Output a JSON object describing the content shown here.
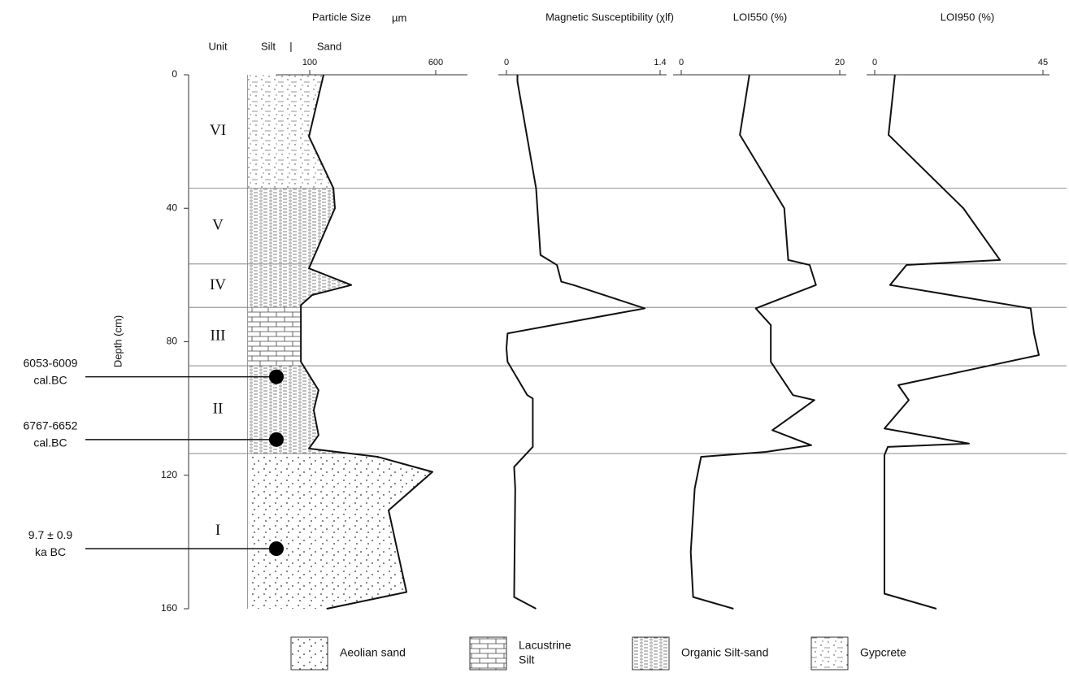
{
  "depth_axis": {
    "label": "Depth (cm)",
    "ylim": [
      0,
      160
    ],
    "yticks": [
      0,
      40,
      80,
      120,
      160
    ]
  },
  "unit_header": "Unit",
  "silt_label": "Silt",
  "divider_label": "|",
  "sand_label": "Sand",
  "boundaries": [
    34,
    56.7,
    69.7,
    87.2,
    113.5
  ],
  "units": [
    {
      "name": "VI",
      "pattern": "gyp"
    },
    {
      "name": "V",
      "pattern": "org"
    },
    {
      "name": "IV",
      "pattern": "org"
    },
    {
      "name": "III",
      "pattern": "lac"
    },
    {
      "name": "II",
      "pattern": "org"
    },
    {
      "name": "I",
      "pattern": "aeo"
    }
  ],
  "samples": [
    {
      "lines": [
        "6053-6009",
        "cal.BC"
      ],
      "depth": 90.5
    },
    {
      "lines": [
        "6767-6652",
        "cal.BC"
      ],
      "depth": 109.3
    },
    {
      "lines": [
        "9.7 ± 0.9",
        "ka BC"
      ],
      "depth": 142
    }
  ],
  "legend": [
    {
      "lines": [
        "Aeolian sand"
      ],
      "pattern": "aeo"
    },
    {
      "lines": [
        "Lacustrine",
        "Silt"
      ],
      "pattern": "lac"
    },
    {
      "lines": [
        "Organic Silt-sand"
      ],
      "pattern": "org"
    },
    {
      "lines": [
        "Gypcrete"
      ],
      "pattern": "gyp"
    }
  ],
  "chart_data": [
    {
      "type": "line",
      "title": "Particle Size",
      "unit": "µm",
      "color": "#111",
      "fill_lithology": true,
      "xlim": [
        0,
        700
      ],
      "xticks": [
        100,
        600
      ],
      "depth": [
        0,
        18.5,
        34,
        40,
        58,
        63,
        66,
        69,
        86,
        94.5,
        100.5,
        108,
        112,
        114.5,
        119,
        130.5,
        155,
        160
      ],
      "values": [
        155,
        97,
        194,
        200,
        97,
        265,
        110,
        65,
        65,
        135,
        116,
        135,
        97,
        371,
        587,
        413,
        484,
        168
      ]
    },
    {
      "type": "line",
      "title": "Magnetic Susceptibility (χlf)",
      "color": "#111",
      "xlim": [
        0,
        1.4
      ],
      "xticks": [
        0,
        1.4
      ],
      "depth": [
        0,
        2,
        34,
        54,
        57,
        62,
        63,
        70,
        77.5,
        82,
        86,
        96,
        97,
        111.5,
        117.5,
        124,
        156.5,
        160
      ],
      "values": [
        0.1,
        0.1,
        0.27,
        0.31,
        0.46,
        0.5,
        0.61,
        1.26,
        0.01,
        0,
        0.01,
        0.19,
        0.24,
        0.24,
        0.07,
        0.08,
        0.07,
        0.27
      ]
    },
    {
      "type": "line",
      "title": "LOI550 (%)",
      "color": "#111",
      "xlim": [
        0,
        20
      ],
      "xticks": [
        0,
        20
      ],
      "depth": [
        0,
        18,
        40,
        55.5,
        57,
        63,
        70,
        75,
        86,
        96,
        97.5,
        106.5,
        111,
        113,
        114.5,
        124,
        143,
        156.5,
        160
      ],
      "values": [
        8.6,
        7.4,
        13,
        13.5,
        16.2,
        17,
        9.4,
        11.3,
        11.3,
        14.1,
        16.8,
        11.5,
        16.4,
        10.7,
        2.5,
        1.7,
        1.2,
        1.5,
        6.6
      ]
    },
    {
      "type": "line",
      "title": "LOI950 (%)",
      "color": "#111",
      "xlim": [
        0,
        45
      ],
      "xticks": [
        0,
        45
      ],
      "depth": [
        0,
        18,
        40,
        55.5,
        57,
        63,
        70,
        77.5,
        84,
        93,
        97.5,
        106,
        110.5,
        111.5,
        114,
        155.5,
        160
      ],
      "values": [
        5.4,
        3.7,
        23.7,
        33.5,
        8.5,
        4.1,
        41.7,
        42.6,
        43.9,
        6.3,
        9.1,
        2.6,
        25.2,
        3.5,
        2.6,
        2.6,
        16.5
      ]
    }
  ]
}
